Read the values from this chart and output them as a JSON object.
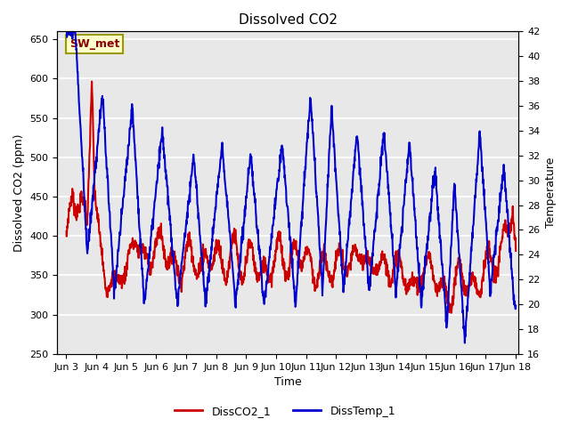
{
  "title": "Dissolved CO2",
  "xlabel": "Time",
  "ylabel_left": "Dissolved CO2 (ppm)",
  "ylabel_right": "Temperature",
  "legend_label1": "DissCO2_1",
  "legend_label2": "DissTemp_1",
  "annotation_text": "SW_met",
  "annotation_box_color": "#ffffcc",
  "annotation_text_color": "#880000",
  "line_color1": "#cc0000",
  "line_color2": "#0000cc",
  "bg_color": "#e8e8e8",
  "ylim_left": [
    250,
    660
  ],
  "ylim_right": [
    16,
    42
  ],
  "x_start_days": 2.7,
  "x_end_days": 18.1,
  "xtick_labels": [
    "Jun 3",
    "Jun 4",
    "Jun 5",
    "Jun 6",
    "Jun 7",
    "Jun 8",
    "Jun 9",
    "Jun 10",
    "Jun 11",
    "Jun 12",
    "Jun 13",
    "Jun 14",
    "Jun 15",
    "Jun 16",
    "Jun 17",
    "Jun 18"
  ],
  "xtick_positions": [
    3,
    4,
    5,
    6,
    7,
    8,
    9,
    10,
    11,
    12,
    13,
    14,
    15,
    16,
    17,
    18
  ],
  "yticks_left": [
    250,
    300,
    350,
    400,
    450,
    500,
    550,
    600,
    650
  ],
  "yticks_right": [
    16,
    18,
    20,
    22,
    24,
    26,
    28,
    30,
    32,
    34,
    36,
    38,
    40,
    42
  ],
  "grid_color": "white",
  "title_fontsize": 11,
  "axis_fontsize": 9,
  "tick_fontsize": 8,
  "legend_fontsize": 9,
  "linewidth": 1.5
}
